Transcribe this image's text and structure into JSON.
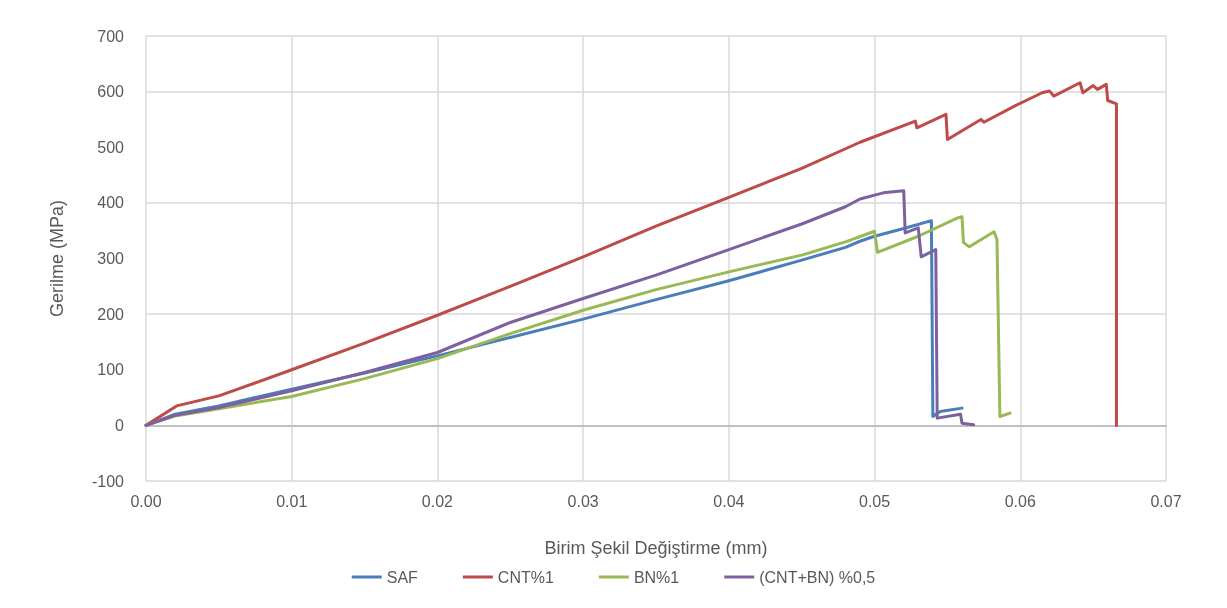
{
  "chart_data": {
    "type": "line",
    "xlabel": "Birim Şekil Değiştirme (mm)",
    "ylabel": "Gerilme (MPa)",
    "xlim": [
      0,
      0.07
    ],
    "xticks": [
      {
        "value": 0,
        "label": "0.00"
      },
      {
        "value": 0.01,
        "label": "0.01"
      },
      {
        "value": 0.02,
        "label": "0.02"
      },
      {
        "value": 0.03,
        "label": "0.03"
      },
      {
        "value": 0.04,
        "label": "0.04"
      },
      {
        "value": 0.05,
        "label": "0.05"
      },
      {
        "value": 0.06,
        "label": "0.06"
      },
      {
        "value": 0.07,
        "label": "0.07"
      }
    ],
    "ylim": [
      -100,
      700
    ],
    "yticks": [
      -100,
      0,
      100,
      200,
      300,
      400,
      500,
      600,
      700
    ],
    "grid": true,
    "legend": "bottom",
    "marker": "none",
    "line_style": "solid",
    "series": [
      {
        "name": "SAF",
        "color": "#4a7ebb",
        "x": [
          0,
          0.002,
          0.005,
          0.01,
          0.015,
          0.02,
          0.025,
          0.03,
          0.035,
          0.04,
          0.045,
          0.048,
          0.049,
          0.05,
          0.052,
          0.0539,
          0.054,
          0.0545,
          0.056
        ],
        "values": [
          0,
          20,
          35,
          65,
          94,
          125,
          158,
          191,
          226,
          260,
          297,
          320,
          331,
          340,
          354,
          368,
          16,
          25,
          31
        ]
      },
      {
        "name": "CNT%1",
        "color": "#be4b48",
        "x": [
          0,
          0.0021,
          0.005,
          0.01,
          0.015,
          0.02,
          0.025,
          0.03,
          0.035,
          0.04,
          0.045,
          0.049,
          0.0528,
          0.0529,
          0.0549,
          0.055,
          0.0573,
          0.0575,
          0.0596,
          0.0615,
          0.062,
          0.0623,
          0.0641,
          0.0643,
          0.065,
          0.0653,
          0.0659,
          0.066,
          0.0666,
          0.0666
        ],
        "values": [
          0,
          35,
          53,
          100,
          148,
          198,
          250,
          303,
          358,
          410,
          462,
          509,
          547,
          535,
          559,
          514,
          550,
          545,
          574,
          598,
          601,
          592,
          616,
          598,
          611,
          604,
          613,
          584,
          578,
          0
        ]
      },
      {
        "name": "BN%1",
        "color": "#98b954",
        "x": [
          0,
          0.002,
          0.005,
          0.01,
          0.015,
          0.02,
          0.025,
          0.03,
          0.035,
          0.04,
          0.045,
          0.048,
          0.05,
          0.0502,
          0.053,
          0.0557,
          0.056,
          0.0561,
          0.0565,
          0.0582,
          0.0584,
          0.0586,
          0.0593
        ],
        "values": [
          0,
          17,
          30,
          52,
          84,
          120,
          165,
          207,
          244,
          276,
          306,
          330,
          349,
          311,
          340,
          373,
          375,
          329,
          321,
          348,
          334,
          16,
          22
        ]
      },
      {
        "name": "(CNT+BN) %0,5",
        "color": "#7d60a0",
        "x": [
          0,
          0.002,
          0.005,
          0.01,
          0.015,
          0.02,
          0.025,
          0.03,
          0.035,
          0.04,
          0.045,
          0.048,
          0.049,
          0.0506,
          0.052,
          0.0521,
          0.053,
          0.0532,
          0.0542,
          0.0543,
          0.0559,
          0.056,
          0.0568
        ],
        "values": [
          0,
          18,
          32,
          62,
          95,
          131,
          185,
          228,
          270,
          316,
          362,
          393,
          407,
          418,
          422,
          346,
          355,
          303,
          316,
          13,
          20,
          4,
          1
        ]
      }
    ]
  }
}
